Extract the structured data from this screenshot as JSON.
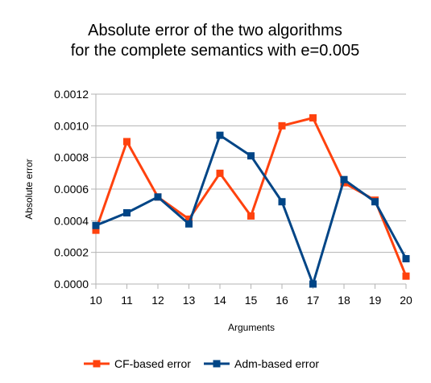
{
  "chart_data": {
    "type": "line",
    "title_lines": [
      "Absolute error of the two algorithms",
      "for the complete semantics with e=0.005"
    ],
    "xlabel": "Arguments",
    "ylabel": "Absolute error",
    "x": [
      10,
      11,
      12,
      13,
      14,
      15,
      16,
      17,
      18,
      19,
      20
    ],
    "x_tick_labels": [
      "10",
      "11",
      "12",
      "13",
      "14",
      "15",
      "16",
      "17",
      "18",
      "19",
      "20"
    ],
    "ylim": [
      0,
      0.0012
    ],
    "y_ticks": [
      0,
      0.0002,
      0.0004,
      0.0006,
      0.0008,
      0.001,
      0.0012
    ],
    "y_tick_labels": [
      "0.0000",
      "0.0002",
      "0.0004",
      "0.0006",
      "0.0008",
      "0.0010",
      "0.0012"
    ],
    "grid": "horizontal",
    "legend_position": "bottom",
    "series": [
      {
        "name": "CF-based error",
        "color": "#ff420e",
        "values": [
          0.00034,
          0.0009,
          0.00055,
          0.00041,
          0.0007,
          0.00043,
          0.001,
          0.00105,
          0.00064,
          0.00053,
          5e-05
        ]
      },
      {
        "name": "Adm-based error",
        "color": "#004586",
        "values": [
          0.00037,
          0.00045,
          0.00055,
          0.00038,
          0.00094,
          0.00081,
          0.00052,
          0.0,
          0.00066,
          0.00052,
          0.00016
        ]
      }
    ]
  }
}
